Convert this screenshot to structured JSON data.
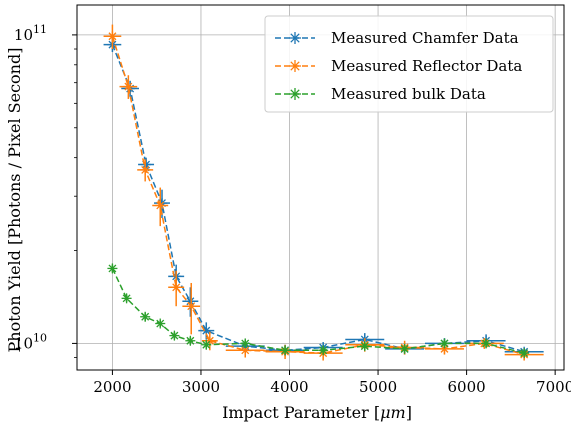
{
  "chart_data": {
    "type": "line",
    "xlabel_parts": [
      "Impact Parameter [",
      "μm",
      "]"
    ],
    "ylabel": "Photon Yield [Photons / Pixel Second]",
    "xlim": [
      1600,
      7100
    ],
    "ylim": [
      8200000000,
      125000000000
    ],
    "yscale": "log",
    "grid": true,
    "legend_position": "top-right",
    "x_ticks": [
      2000,
      3000,
      4000,
      5000,
      6000,
      7000
    ],
    "x_tick_labels": [
      "2000",
      "3000",
      "4000",
      "5000",
      "6000",
      "7000"
    ],
    "y_ticks": [
      {
        "value": 10000000000,
        "base": "10",
        "exp": "10"
      },
      {
        "value": 100000000000,
        "base": "10",
        "exp": "11"
      }
    ],
    "series": [
      {
        "name": "Measured Chamfer Data",
        "color": "#1f77b4",
        "points": [
          {
            "x": 2000,
            "y": 93000000000,
            "xerr": 100,
            "yerr": 5000000000
          },
          {
            "x": 2200,
            "y": 67000000000,
            "xerr": 100,
            "yerr": 4000000000
          },
          {
            "x": 2380,
            "y": 38000000000,
            "xerr": 90,
            "yerr": 2000000000
          },
          {
            "x": 2560,
            "y": 28500000000,
            "xerr": 90,
            "yerr": 3000000000
          },
          {
            "x": 2720,
            "y": 16500000000,
            "xerr": 90,
            "yerr": 1500000000
          },
          {
            "x": 2880,
            "y": 13700000000,
            "xerr": 90,
            "yerr": 1500000000
          },
          {
            "x": 3060,
            "y": 11000000000,
            "xerr": 90,
            "yerr": 700000000
          },
          {
            "x": 3500,
            "y": 9800000000,
            "xerr": 220,
            "yerr": 400000000
          },
          {
            "x": 3950,
            "y": 9500000000,
            "xerr": 220,
            "yerr": 400000000
          },
          {
            "x": 4380,
            "y": 9700000000,
            "xerr": 220,
            "yerr": 400000000
          },
          {
            "x": 4850,
            "y": 10300000000,
            "xerr": 220,
            "yerr": 500000000
          },
          {
            "x": 5300,
            "y": 9600000000,
            "xerr": 220,
            "yerr": 400000000
          },
          {
            "x": 5750,
            "y": 10000000000,
            "xerr": 220,
            "yerr": 400000000
          },
          {
            "x": 6220,
            "y": 10200000000,
            "xerr": 220,
            "yerr": 500000000
          },
          {
            "x": 6650,
            "y": 9400000000,
            "xerr": 220,
            "yerr": 300000000
          }
        ]
      },
      {
        "name": "Measured Reflector Data",
        "color": "#ff7f0e",
        "points": [
          {
            "x": 2000,
            "y": 99000000000,
            "xerr": 100,
            "yerr": 9000000000
          },
          {
            "x": 2180,
            "y": 68000000000,
            "xerr": 100,
            "yerr": 6000000000
          },
          {
            "x": 2370,
            "y": 36500000000,
            "xerr": 90,
            "yerr": 3000000000
          },
          {
            "x": 2540,
            "y": 28000000000,
            "xerr": 90,
            "yerr": 4000000000
          },
          {
            "x": 2720,
            "y": 15200000000,
            "xerr": 90,
            "yerr": 2000000000
          },
          {
            "x": 2890,
            "y": 13200000000,
            "xerr": 100,
            "yerr": 2500000000
          },
          {
            "x": 3100,
            "y": 10200000000,
            "xerr": 90,
            "yerr": 700000000
          },
          {
            "x": 3500,
            "y": 9500000000,
            "xerr": 220,
            "yerr": 500000000
          },
          {
            "x": 3950,
            "y": 9400000000,
            "xerr": 220,
            "yerr": 500000000
          },
          {
            "x": 4380,
            "y": 9300000000,
            "xerr": 220,
            "yerr": 500000000
          },
          {
            "x": 4850,
            "y": 9900000000,
            "xerr": 220,
            "yerr": 500000000
          },
          {
            "x": 5300,
            "y": 9700000000,
            "xerr": 220,
            "yerr": 500000000
          },
          {
            "x": 5750,
            "y": 9600000000,
            "xerr": 220,
            "yerr": 400000000
          },
          {
            "x": 6200,
            "y": 10000000000,
            "xerr": 220,
            "yerr": 400000000
          },
          {
            "x": 6650,
            "y": 9200000000,
            "xerr": 220,
            "yerr": 400000000
          }
        ]
      },
      {
        "name": "Measured bulk Data",
        "color": "#2ca02c",
        "points": [
          {
            "x": 2000,
            "y": 17500000000,
            "xerr": 0,
            "yerr": 500000000
          },
          {
            "x": 2160,
            "y": 14000000000,
            "xerr": 0,
            "yerr": 400000000
          },
          {
            "x": 2370,
            "y": 12200000000,
            "xerr": 0,
            "yerr": 400000000
          },
          {
            "x": 2540,
            "y": 11600000000,
            "xerr": 0,
            "yerr": 300000000
          },
          {
            "x": 2700,
            "y": 10600000000,
            "xerr": 0,
            "yerr": 300000000
          },
          {
            "x": 2880,
            "y": 10200000000,
            "xerr": 0,
            "yerr": 300000000
          },
          {
            "x": 3060,
            "y": 9900000000,
            "xerr": 0,
            "yerr": 300000000
          },
          {
            "x": 3500,
            "y": 10000000000,
            "xerr": 0,
            "yerr": 300000000
          },
          {
            "x": 3950,
            "y": 9500000000,
            "xerr": 0,
            "yerr": 300000000
          },
          {
            "x": 4380,
            "y": 9500000000,
            "xerr": 0,
            "yerr": 300000000
          },
          {
            "x": 4850,
            "y": 9800000000,
            "xerr": 0,
            "yerr": 300000000
          },
          {
            "x": 5300,
            "y": 9600000000,
            "xerr": 0,
            "yerr": 300000000
          },
          {
            "x": 5750,
            "y": 10000000000,
            "xerr": 0,
            "yerr": 300000000
          },
          {
            "x": 6220,
            "y": 10000000000,
            "xerr": 0,
            "yerr": 300000000
          },
          {
            "x": 6650,
            "y": 9300000000,
            "xerr": 0,
            "yerr": 300000000
          }
        ]
      }
    ]
  }
}
